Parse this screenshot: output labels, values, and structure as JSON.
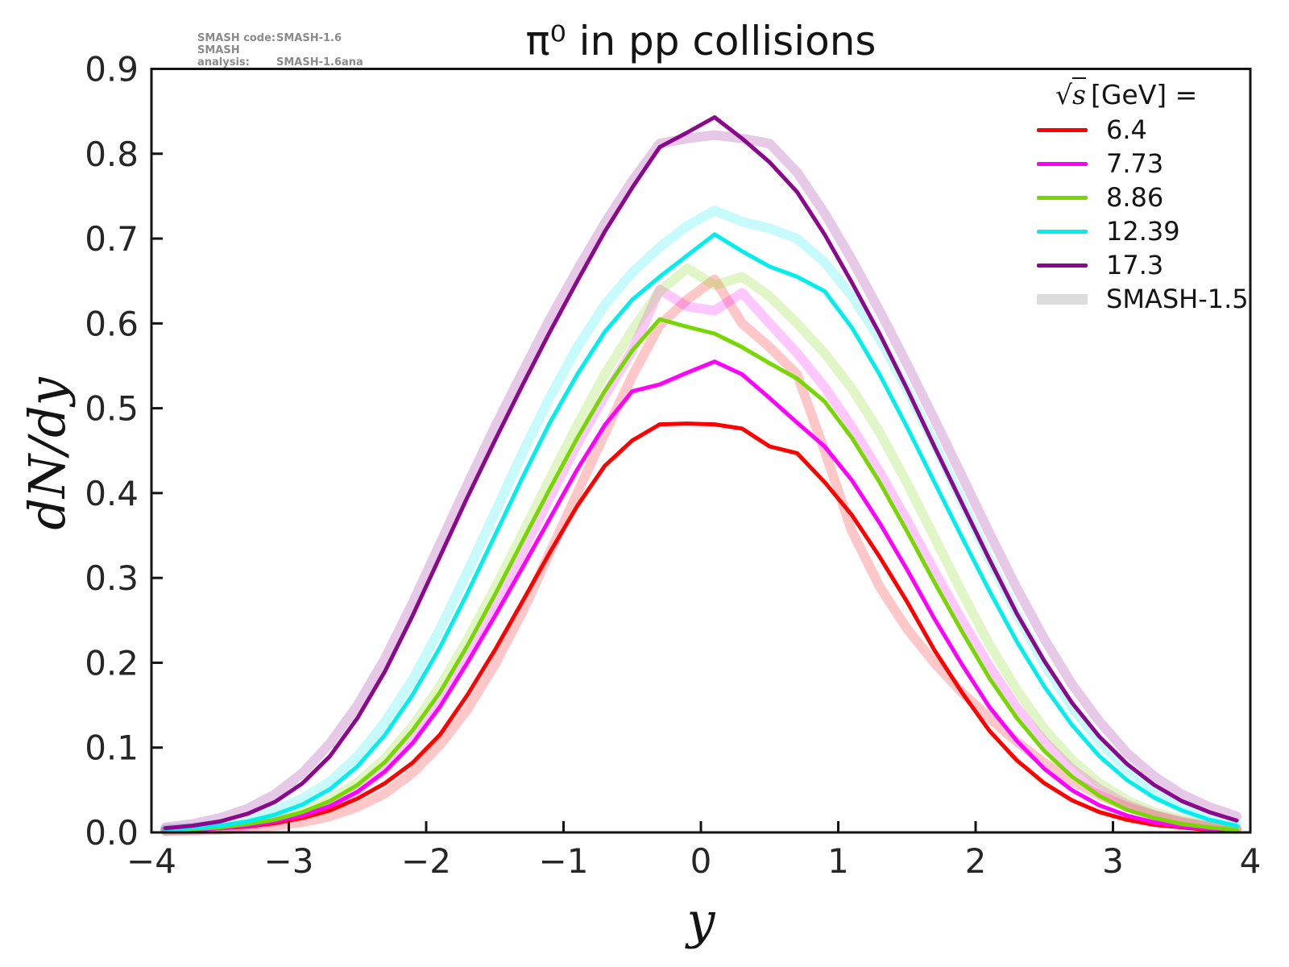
{
  "title": "π⁰ in pp collisions",
  "credits": {
    "line1_label": "SMASH code:",
    "line1_value": "SMASH-1.6",
    "line2_label": "SMASH analysis:",
    "line2_value": "SMASH-1.6ana"
  },
  "axes": {
    "x_label": "y",
    "y_label": "dN/dy"
  },
  "legend": {
    "header_sqrt": "√",
    "header_arg": "s",
    "header_rest": "[GeV] =",
    "entries": [
      {
        "label": "6.4",
        "color": "#ff0000",
        "swatch_height": 5
      },
      {
        "label": "7.73",
        "color": "#ff00ff",
        "swatch_height": 5
      },
      {
        "label": "8.86",
        "color": "#77d700",
        "swatch_height": 5
      },
      {
        "label": "12.39",
        "color": "#00eeee",
        "swatch_height": 5
      },
      {
        "label": "17.3",
        "color": "#8b078b",
        "swatch_height": 5
      },
      {
        "label": "SMASH-1.5",
        "color": "#dcdcdc",
        "swatch_height": 13
      }
    ]
  },
  "chart_data": {
    "type": "line",
    "title": "π⁰ in pp collisions",
    "xlabel": "y",
    "ylabel": "dN/dy",
    "xlim": [
      -4,
      4
    ],
    "ylim": [
      0,
      0.9
    ],
    "grid": false,
    "legend_position": "upper right",
    "axis_color": "#141414",
    "x_ticks": [
      -4,
      -3,
      -2,
      -1,
      0,
      1,
      2,
      3,
      4
    ],
    "x_tick_labels": [
      "−4",
      "−3",
      "−2",
      "−1",
      "0",
      "1",
      "2",
      "3",
      "4"
    ],
    "y_ticks": [
      0.0,
      0.1,
      0.2,
      0.3,
      0.4,
      0.5,
      0.6,
      0.7,
      0.8,
      0.9
    ],
    "y_tick_labels": [
      "0.0",
      "0.1",
      "0.2",
      "0.3",
      "0.4",
      "0.5",
      "0.6",
      "0.7",
      "0.8",
      "0.9"
    ],
    "x": [
      -3.9,
      -3.7,
      -3.5,
      -3.3,
      -3.1,
      -2.9,
      -2.7,
      -2.5,
      -2.3,
      -2.1,
      -1.9,
      -1.7,
      -1.5,
      -1.3,
      -1.1,
      -0.9,
      -0.7,
      -0.5,
      -0.3,
      -0.1,
      0.1,
      0.3,
      0.5,
      0.7,
      0.9,
      1.1,
      1.3,
      1.5,
      1.7,
      1.9,
      2.1,
      2.3,
      2.5,
      2.7,
      2.9,
      3.1,
      3.3,
      3.5,
      3.7,
      3.9
    ],
    "smash15_series": [
      {
        "name": "SMASH-1.5 6.4",
        "color": "#ff0000",
        "style": "faint",
        "values": [
          0.002,
          0.002,
          0.003,
          0.005,
          0.008,
          0.012,
          0.019,
          0.03,
          0.046,
          0.07,
          0.103,
          0.145,
          0.198,
          0.26,
          0.33,
          0.4,
          0.47,
          0.538,
          0.598,
          0.628,
          0.652,
          0.6,
          0.572,
          0.54,
          0.45,
          0.355,
          0.29,
          0.24,
          0.2,
          0.165,
          0.135,
          0.107,
          0.082,
          0.061,
          0.044,
          0.03,
          0.02,
          0.012,
          0.007,
          0.004
        ]
      },
      {
        "name": "SMASH-1.5 7.73",
        "color": "#ff00ff",
        "style": "faint",
        "values": [
          0.002,
          0.003,
          0.005,
          0.008,
          0.013,
          0.02,
          0.032,
          0.05,
          0.075,
          0.11,
          0.155,
          0.208,
          0.268,
          0.33,
          0.395,
          0.458,
          0.515,
          0.568,
          0.64,
          0.62,
          0.615,
          0.636,
          0.6,
          0.565,
          0.525,
          0.478,
          0.425,
          0.368,
          0.308,
          0.25,
          0.196,
          0.147,
          0.107,
          0.075,
          0.051,
          0.033,
          0.021,
          0.013,
          0.007,
          0.004
        ]
      },
      {
        "name": "SMASH-1.5 8.86",
        "color": "#77d700",
        "style": "faint",
        "values": [
          0.002,
          0.004,
          0.006,
          0.01,
          0.016,
          0.025,
          0.039,
          0.059,
          0.087,
          0.125,
          0.172,
          0.227,
          0.288,
          0.352,
          0.417,
          0.48,
          0.54,
          0.592,
          0.638,
          0.665,
          0.645,
          0.655,
          0.632,
          0.6,
          0.565,
          0.523,
          0.472,
          0.412,
          0.348,
          0.283,
          0.222,
          0.168,
          0.122,
          0.086,
          0.058,
          0.038,
          0.024,
          0.015,
          0.009,
          0.005
        ]
      },
      {
        "name": "SMASH-1.5 12.39",
        "color": "#00eeee",
        "style": "faint",
        "values": [
          0.004,
          0.006,
          0.01,
          0.016,
          0.026,
          0.04,
          0.06,
          0.09,
          0.13,
          0.18,
          0.24,
          0.307,
          0.377,
          0.447,
          0.513,
          0.572,
          0.622,
          0.66,
          0.69,
          0.715,
          0.733,
          0.72,
          0.712,
          0.7,
          0.672,
          0.632,
          0.582,
          0.522,
          0.458,
          0.39,
          0.322,
          0.257,
          0.198,
          0.148,
          0.107,
          0.075,
          0.05,
          0.032,
          0.019,
          0.01
        ]
      },
      {
        "name": "SMASH-1.5 17.3",
        "color": "#8b078b",
        "style": "faint",
        "values": [
          0.006,
          0.01,
          0.017,
          0.028,
          0.045,
          0.07,
          0.105,
          0.15,
          0.205,
          0.27,
          0.34,
          0.41,
          0.478,
          0.542,
          0.605,
          0.663,
          0.718,
          0.768,
          0.812,
          0.818,
          0.822,
          0.818,
          0.812,
          0.778,
          0.73,
          0.675,
          0.615,
          0.552,
          0.487,
          0.42,
          0.353,
          0.288,
          0.228,
          0.175,
          0.131,
          0.094,
          0.066,
          0.045,
          0.03,
          0.019
        ]
      }
    ],
    "series": [
      {
        "name": "6.4",
        "color": "#ff0000",
        "style": "solid",
        "values": [
          0.002,
          0.003,
          0.005,
          0.007,
          0.011,
          0.017,
          0.026,
          0.04,
          0.058,
          0.082,
          0.115,
          0.162,
          0.215,
          0.272,
          0.33,
          0.385,
          0.432,
          0.462,
          0.481,
          0.482,
          0.481,
          0.476,
          0.455,
          0.447,
          0.413,
          0.374,
          0.325,
          0.272,
          0.215,
          0.165,
          0.12,
          0.085,
          0.058,
          0.038,
          0.024,
          0.015,
          0.009,
          0.006,
          0.003,
          0.002
        ]
      },
      {
        "name": "7.73",
        "color": "#ff00ff",
        "style": "solid",
        "values": [
          0.002,
          0.003,
          0.005,
          0.008,
          0.013,
          0.02,
          0.031,
          0.048,
          0.072,
          0.105,
          0.148,
          0.2,
          0.255,
          0.312,
          0.37,
          0.428,
          0.48,
          0.52,
          0.528,
          0.542,
          0.555,
          0.54,
          0.512,
          0.483,
          0.455,
          0.415,
          0.365,
          0.31,
          0.252,
          0.198,
          0.148,
          0.108,
          0.075,
          0.05,
          0.032,
          0.02,
          0.012,
          0.007,
          0.004,
          0.002
        ]
      },
      {
        "name": "8.86",
        "color": "#77d700",
        "style": "solid",
        "values": [
          0.002,
          0.004,
          0.006,
          0.01,
          0.015,
          0.024,
          0.037,
          0.056,
          0.083,
          0.12,
          0.165,
          0.22,
          0.28,
          0.343,
          0.405,
          0.465,
          0.52,
          0.568,
          0.605,
          0.596,
          0.588,
          0.572,
          0.553,
          0.535,
          0.508,
          0.465,
          0.413,
          0.355,
          0.295,
          0.237,
          0.182,
          0.135,
          0.096,
          0.066,
          0.043,
          0.027,
          0.017,
          0.01,
          0.006,
          0.003
        ]
      },
      {
        "name": "12.39",
        "color": "#00eeee",
        "style": "solid",
        "values": [
          0.003,
          0.005,
          0.008,
          0.013,
          0.021,
          0.033,
          0.051,
          0.078,
          0.115,
          0.162,
          0.218,
          0.282,
          0.35,
          0.418,
          0.483,
          0.54,
          0.59,
          0.628,
          0.655,
          0.68,
          0.705,
          0.685,
          0.667,
          0.655,
          0.638,
          0.595,
          0.54,
          0.478,
          0.413,
          0.348,
          0.285,
          0.225,
          0.172,
          0.127,
          0.09,
          0.062,
          0.041,
          0.026,
          0.015,
          0.008
        ]
      },
      {
        "name": "17.3",
        "color": "#8b078b",
        "style": "solid",
        "values": [
          0.005,
          0.008,
          0.013,
          0.022,
          0.036,
          0.058,
          0.09,
          0.135,
          0.19,
          0.255,
          0.325,
          0.395,
          0.462,
          0.527,
          0.59,
          0.65,
          0.708,
          0.76,
          0.808,
          0.825,
          0.843,
          0.818,
          0.79,
          0.755,
          0.705,
          0.648,
          0.588,
          0.523,
          0.455,
          0.388,
          0.322,
          0.258,
          0.202,
          0.153,
          0.113,
          0.081,
          0.056,
          0.037,
          0.024,
          0.014
        ]
      }
    ]
  }
}
